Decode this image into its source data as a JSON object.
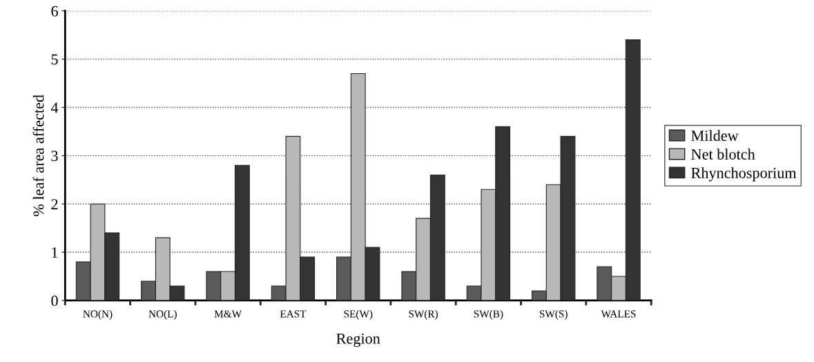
{
  "chart_data": {
    "type": "bar",
    "xlabel": "Region",
    "ylabel": "% leaf area affected",
    "categories": [
      "NO(N)",
      "NO(L)",
      "M&W",
      "EAST",
      "SE(W)",
      "SW(R)",
      "SW(B)",
      "SW(S)",
      "WALES"
    ],
    "series": [
      {
        "name": "Mildew",
        "color": "#5a5a5a",
        "values": [
          0.8,
          0.4,
          0.6,
          0.3,
          0.9,
          0.6,
          0.3,
          0.2,
          0.7
        ]
      },
      {
        "name": "Net blotch",
        "color": "#b8b8b8",
        "values": [
          2.0,
          1.3,
          0.6,
          3.4,
          4.7,
          1.7,
          2.3,
          2.4,
          0.5
        ]
      },
      {
        "name": "Rhynchosporium",
        "color": "#333333",
        "values": [
          1.4,
          0.3,
          2.8,
          0.9,
          1.1,
          2.6,
          3.6,
          3.4,
          5.4
        ]
      }
    ],
    "ylim": [
      0,
      6
    ],
    "yticks": [
      0,
      1,
      2,
      3,
      4,
      5,
      6
    ],
    "grid": "y",
    "legend": "right"
  }
}
